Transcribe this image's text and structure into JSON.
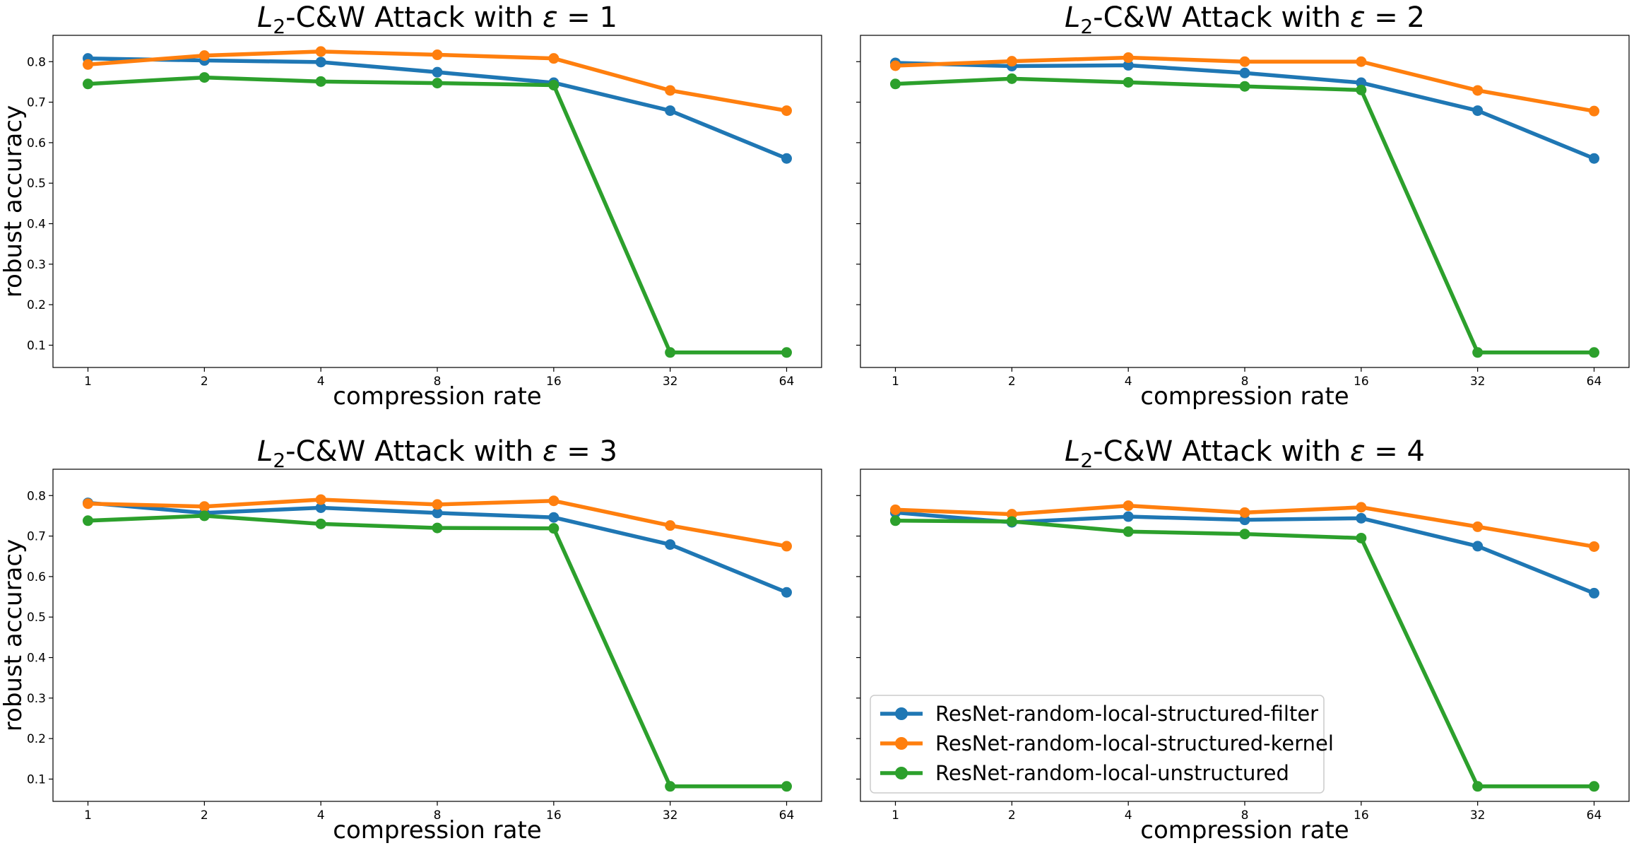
{
  "chart_data": [
    {
      "type": "line",
      "title_prefix": "L",
      "title_subscript": "2",
      "title_mid": "-C&W Attack with ",
      "title_symbol": "ε",
      "title_suffix": " = 1",
      "xlabel": "compression rate",
      "ylabel": "robust accuracy",
      "categories": [
        "1",
        "2",
        "4",
        "8",
        "16",
        "32",
        "64"
      ],
      "ylim": [
        0.045,
        0.865
      ],
      "yticks": [
        "0.1",
        "0.2",
        "0.3",
        "0.4",
        "0.5",
        "0.6",
        "0.7",
        "0.8"
      ],
      "show_ytick_labels": true,
      "grid": false,
      "series": [
        {
          "name": "ResNet-random-local-structured-filter",
          "color": "#1f77b4",
          "values": [
            0.808,
            0.803,
            0.799,
            0.774,
            0.748,
            0.679,
            0.561
          ]
        },
        {
          "name": "ResNet-random-local-structured-kernel",
          "color": "#ff7f0e",
          "values": [
            0.793,
            0.815,
            0.825,
            0.817,
            0.808,
            0.729,
            0.679
          ]
        },
        {
          "name": "ResNet-random-local-unstructured",
          "color": "#2ca02c",
          "values": [
            0.745,
            0.761,
            0.751,
            0.747,
            0.742,
            0.082,
            0.082
          ]
        }
      ]
    },
    {
      "type": "line",
      "title_prefix": "L",
      "title_subscript": "2",
      "title_mid": "-C&W Attack with ",
      "title_symbol": "ε",
      "title_suffix": " = 2",
      "xlabel": "compression rate",
      "ylabel": "",
      "categories": [
        "1",
        "2",
        "4",
        "8",
        "16",
        "32",
        "64"
      ],
      "ylim": [
        0.045,
        0.865
      ],
      "yticks": [
        "0.1",
        "0.2",
        "0.3",
        "0.4",
        "0.5",
        "0.6",
        "0.7",
        "0.8"
      ],
      "show_ytick_labels": false,
      "grid": false,
      "series": [
        {
          "name": "ResNet-random-local-structured-filter",
          "color": "#1f77b4",
          "values": [
            0.797,
            0.789,
            0.791,
            0.772,
            0.748,
            0.679,
            0.561
          ]
        },
        {
          "name": "ResNet-random-local-structured-kernel",
          "color": "#ff7f0e",
          "values": [
            0.79,
            0.801,
            0.81,
            0.8,
            0.8,
            0.729,
            0.678
          ]
        },
        {
          "name": "ResNet-random-local-unstructured",
          "color": "#2ca02c",
          "values": [
            0.745,
            0.758,
            0.749,
            0.739,
            0.73,
            0.082,
            0.082
          ]
        }
      ]
    },
    {
      "type": "line",
      "title_prefix": "L",
      "title_subscript": "2",
      "title_mid": "-C&W Attack with ",
      "title_symbol": "ε",
      "title_suffix": " = 3",
      "xlabel": "compression rate",
      "ylabel": "robust accuracy",
      "categories": [
        "1",
        "2",
        "4",
        "8",
        "16",
        "32",
        "64"
      ],
      "ylim": [
        0.045,
        0.865
      ],
      "yticks": [
        "0.1",
        "0.2",
        "0.3",
        "0.4",
        "0.5",
        "0.6",
        "0.7",
        "0.8"
      ],
      "show_ytick_labels": true,
      "grid": false,
      "series": [
        {
          "name": "ResNet-random-local-structured-filter",
          "color": "#1f77b4",
          "values": [
            0.782,
            0.757,
            0.77,
            0.757,
            0.746,
            0.679,
            0.561
          ]
        },
        {
          "name": "ResNet-random-local-structured-kernel",
          "color": "#ff7f0e",
          "values": [
            0.78,
            0.773,
            0.79,
            0.778,
            0.787,
            0.726,
            0.675
          ]
        },
        {
          "name": "ResNet-random-local-unstructured",
          "color": "#2ca02c",
          "values": [
            0.738,
            0.75,
            0.73,
            0.72,
            0.719,
            0.082,
            0.082
          ]
        }
      ]
    },
    {
      "type": "line",
      "title_prefix": "L",
      "title_subscript": "2",
      "title_mid": "-C&W Attack with ",
      "title_symbol": "ε",
      "title_suffix": " = 4",
      "xlabel": "compression rate",
      "ylabel": "",
      "categories": [
        "1",
        "2",
        "4",
        "8",
        "16",
        "32",
        "64"
      ],
      "ylim": [
        0.045,
        0.865
      ],
      "yticks": [
        "0.1",
        "0.2",
        "0.3",
        "0.4",
        "0.5",
        "0.6",
        "0.7",
        "0.8"
      ],
      "show_ytick_labels": false,
      "grid": false,
      "legend_position": "lower-left",
      "series": [
        {
          "name": "ResNet-random-local-structured-filter",
          "color": "#1f77b4",
          "values": [
            0.758,
            0.734,
            0.748,
            0.74,
            0.744,
            0.675,
            0.559
          ]
        },
        {
          "name": "ResNet-random-local-structured-kernel",
          "color": "#ff7f0e",
          "values": [
            0.765,
            0.754,
            0.775,
            0.758,
            0.771,
            0.723,
            0.674
          ]
        },
        {
          "name": "ResNet-random-local-unstructured",
          "color": "#2ca02c",
          "values": [
            0.738,
            0.736,
            0.711,
            0.705,
            0.695,
            0.082,
            0.082
          ]
        }
      ]
    }
  ]
}
